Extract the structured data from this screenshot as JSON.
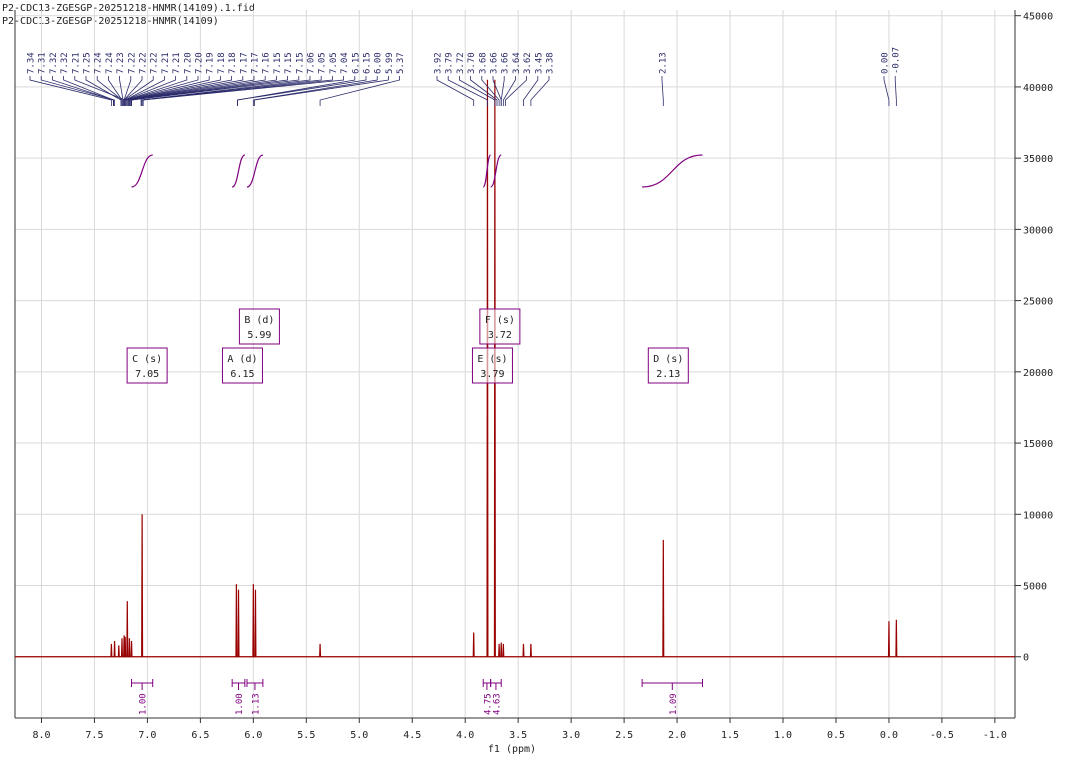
{
  "chart_data": {
    "type": "line",
    "title": "P2-CDC13-ZGESGP-20251218-HNMR(14109).1.fid",
    "subtitle": "P2-CDC13-ZGESGP-20251218-HNMR(14109)",
    "x_label": "f1 (ppm)",
    "color": "#990000",
    "integral_color": "#800080",
    "label_color": "#2b2b6b",
    "grid": true,
    "xlim": [
      8.25,
      -1.19
    ],
    "ylim": [
      -4300,
      45400
    ],
    "xticks": [
      {
        "value": 8,
        "label": "8.0"
      },
      7.5,
      {
        "value": 7,
        "label": "7.0"
      },
      6.5,
      {
        "value": 6,
        "label": "6.0"
      },
      5.5,
      {
        "value": 5,
        "label": "5.0"
      },
      4.5,
      {
        "value": 4,
        "label": "4.0"
      },
      3.5,
      {
        "value": 3,
        "label": "3.0"
      },
      2.5,
      {
        "value": 2,
        "label": "2.0"
      },
      1.5,
      {
        "value": 1,
        "label": "1.0"
      },
      0.5,
      {
        "value": 0,
        "label": "0.0"
      },
      -0.5,
      {
        "value": -1,
        "label": "-1.0"
      }
    ],
    "yticks": [
      0,
      5000,
      10000,
      15000,
      20000,
      25000,
      30000,
      35000,
      40000,
      45000
    ],
    "x": [
      8.25,
      7.344,
      7.34,
      7.336,
      7.314,
      7.31,
      7.306,
      7.274,
      7.27,
      7.266,
      7.244,
      7.24,
      7.236,
      7.224,
      7.22,
      7.216,
      7.214,
      7.21,
      7.206,
      7.194,
      7.19,
      7.186,
      7.174,
      7.17,
      7.166,
      7.154,
      7.15,
      7.146,
      7.054,
      7.05,
      7.046,
      6.164,
      6.16,
      6.156,
      6.144,
      6.14,
      6.136,
      6.004,
      6.0,
      5.996,
      5.984,
      5.98,
      5.976,
      5.374,
      5.37,
      5.366,
      3.924,
      3.92,
      3.916,
      3.794,
      3.79,
      3.786,
      3.724,
      3.72,
      3.716,
      3.684,
      3.68,
      3.676,
      3.664,
      3.66,
      3.656,
      3.644,
      3.64,
      3.636,
      3.454,
      3.45,
      3.446,
      3.384,
      3.38,
      3.376,
      2.134,
      2.13,
      2.126,
      0.004,
      0,
      -0.004,
      -0.066,
      -0.07,
      -0.074,
      -1.19
    ],
    "values": [
      0,
      0,
      900,
      0,
      0,
      1100,
      0,
      0,
      800,
      0,
      0,
      1300,
      0,
      0,
      1500,
      0,
      0,
      1400,
      0,
      0,
      3900,
      0,
      0,
      1300,
      0,
      0,
      1100,
      0,
      0,
      10000,
      0,
      0,
      5100,
      0,
      0,
      4700,
      0,
      0,
      5100,
      0,
      0,
      4700,
      0,
      0,
      900,
      0,
      0,
      1700,
      0,
      0,
      40500,
      0,
      0,
      40500,
      0,
      0,
      900,
      0,
      0,
      1000,
      0,
      0,
      900,
      0,
      0,
      900,
      0,
      0,
      900,
      0,
      0,
      8200,
      0,
      0,
      2500,
      0,
      0,
      2600,
      0,
      0
    ],
    "peak_labels": [
      [
        "7.34",
        "7.31",
        "7.32",
        "7.32",
        "7.21",
        "7.25",
        "7.24",
        "7.24",
        "7.23",
        "7.22",
        "7.22",
        "7.22",
        "7.21",
        "7.21",
        "7.20",
        "7.20",
        "7.19",
        "7.18",
        "7.18",
        "7.17",
        "7.17",
        "7.16",
        "7.15",
        "7.15",
        "7.15",
        "7.06",
        "7.05",
        "7.05",
        "7.04",
        "6.15",
        "6.15",
        "6.00",
        "5.99",
        "5.37"
      ],
      [
        "3.92",
        "3.79",
        "3.72",
        "3.70",
        "3.68",
        "3.66",
        "3.66",
        "3.64",
        "3.62",
        "3.45",
        "3.38"
      ],
      [
        "2.13"
      ],
      [
        "0.00",
        "-0.07"
      ]
    ],
    "multiplets": [
      {
        "label": "C (s)",
        "shift": "7.05"
      },
      {
        "label": "A (d)",
        "shift": "6.15"
      },
      {
        "label": "B (d)",
        "shift": "5.99"
      },
      {
        "label": "F (s)",
        "shift": "3.72"
      },
      {
        "label": "E (s)",
        "shift": "3.79"
      },
      {
        "label": "D (s)",
        "shift": "2.13"
      }
    ],
    "integrals": [
      {
        "label": "1.00",
        "from": 7.15,
        "to": 6.95
      },
      {
        "label": "1.00",
        "from": 6.2,
        "to": 6.08
      },
      {
        "label": "1.13",
        "from": 6.06,
        "to": 5.91
      },
      {
        "label": "4.75",
        "from": 3.83,
        "to": 3.76
      },
      {
        "label": "4.63",
        "from": 3.76,
        "to": 3.66
      },
      {
        "label": "1.09",
        "from": 2.33,
        "to": 1.76
      }
    ]
  }
}
